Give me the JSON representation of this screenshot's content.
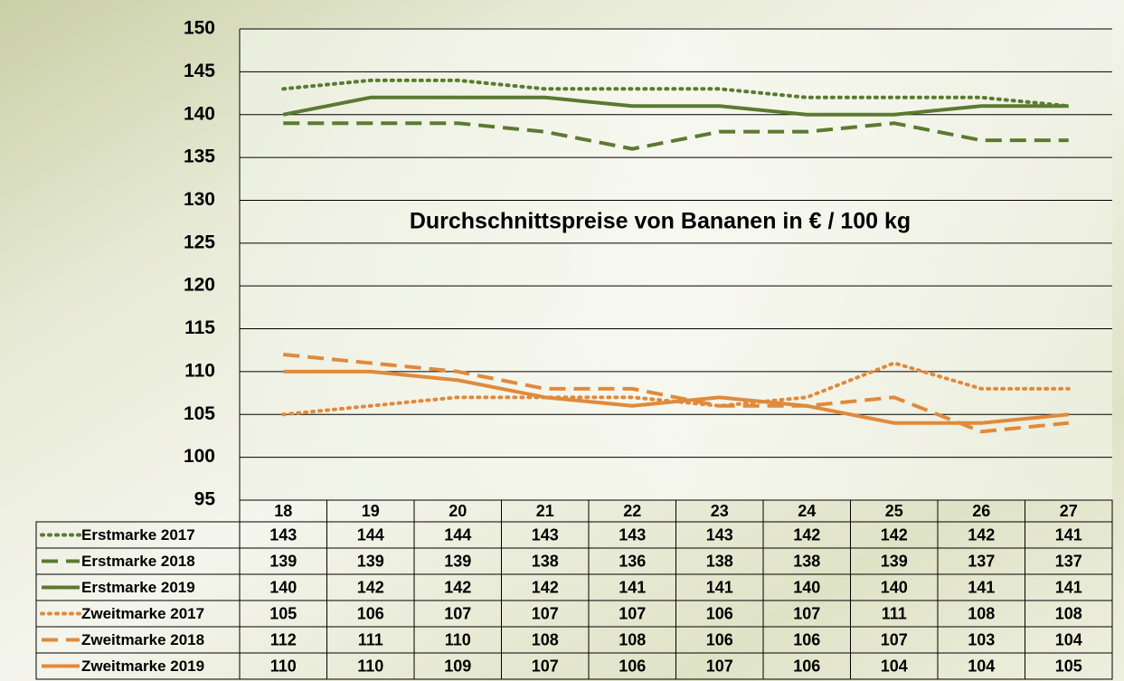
{
  "chart_data": {
    "type": "line",
    "title": "Durchschnittspreise von Bananen in € / 100 kg",
    "categories": [
      "18",
      "19",
      "20",
      "21",
      "22",
      "23",
      "24",
      "25",
      "26",
      "27"
    ],
    "series": [
      {
        "name": "Erstmarke 2017",
        "color": "#5b7a31",
        "dash": "dotted",
        "values": [
          143,
          144,
          144,
          143,
          143,
          143,
          142,
          142,
          142,
          141
        ]
      },
      {
        "name": "Erstmarke 2018",
        "color": "#5b7a31",
        "dash": "dashed",
        "values": [
          139,
          139,
          139,
          138,
          136,
          138,
          138,
          139,
          137,
          137
        ]
      },
      {
        "name": "Erstmarke 2019",
        "color": "#5b7a31",
        "dash": "solid",
        "values": [
          140,
          142,
          142,
          142,
          141,
          141,
          140,
          140,
          141,
          141
        ]
      },
      {
        "name": "Zweitmarke 2017",
        "color": "#e08a3c",
        "dash": "dotted",
        "values": [
          105,
          106,
          107,
          107,
          107,
          106,
          107,
          111,
          108,
          108
        ]
      },
      {
        "name": "Zweitmarke 2018",
        "color": "#e08a3c",
        "dash": "dashed",
        "values": [
          112,
          111,
          110,
          108,
          108,
          106,
          106,
          107,
          103,
          104
        ]
      },
      {
        "name": "Zweitmarke 2019",
        "color": "#e08a3c",
        "dash": "solid",
        "values": [
          110,
          110,
          109,
          107,
          106,
          107,
          106,
          104,
          104,
          105
        ]
      }
    ],
    "ylim": [
      95,
      150
    ],
    "yticks": [
      95,
      100,
      105,
      110,
      115,
      120,
      125,
      130,
      135,
      140,
      145,
      150
    ],
    "grid": true
  }
}
